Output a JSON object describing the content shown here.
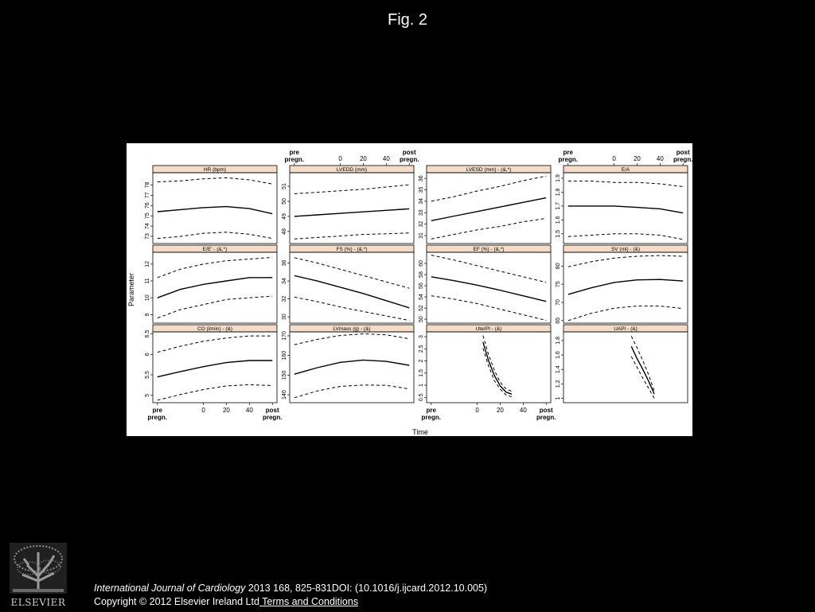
{
  "slide": {
    "title": "Fig. 2",
    "citation_journal": "International Journal of Cardiology",
    "citation_rest": " 2013 168, 825-831DOI: (10.1016/j.ijcard.2012.10.005)",
    "copyright": "Copyright © 2012 Elsevier Ireland Ltd",
    "terms_link": " Terms and Conditions",
    "publisher_logo_text": "ELSEVIER"
  },
  "figure": {
    "ylabel": "Parameter",
    "xlabel": "Time",
    "xticks": [
      {
        "t": -40,
        "label": "pre"
      },
      {
        "t": 0,
        "label": "0"
      },
      {
        "t": 20,
        "label": "20"
      },
      {
        "t": 40,
        "label": "40"
      },
      {
        "t": 60,
        "label": "post"
      }
    ],
    "xtick_second_line": "pregn.",
    "line_color": "#000000",
    "strip_color": "#f5dcc8"
  },
  "chart_data": [
    {
      "type": "line",
      "title": "HR (bpm)",
      "yticks": [
        73,
        74,
        75,
        76,
        77,
        78
      ],
      "ylim": [
        72.3,
        79.2
      ],
      "x": [
        -40,
        -20,
        0,
        20,
        40,
        60
      ],
      "series": [
        {
          "values": [
            75.4,
            75.6,
            75.8,
            75.9,
            75.7,
            75.2
          ]
        },
        {
          "values": [
            78.3,
            78.4,
            78.6,
            78.7,
            78.5,
            78.1
          ],
          "dashed": true
        },
        {
          "values": [
            72.8,
            73.0,
            73.3,
            73.4,
            73.2,
            72.8
          ],
          "dashed": true
        }
      ]
    },
    {
      "type": "line",
      "title": "LVEDD (mm)",
      "yticks": [
        48,
        49,
        50,
        51
      ],
      "ylim": [
        47.2,
        51.9
      ],
      "x": [
        -40,
        -20,
        0,
        20,
        40,
        60
      ],
      "series": [
        {
          "values": [
            49.0,
            49.1,
            49.2,
            49.3,
            49.4,
            49.5
          ]
        },
        {
          "values": [
            50.5,
            50.6,
            50.7,
            50.8,
            50.95,
            51.1
          ],
          "dashed": true
        },
        {
          "values": [
            47.5,
            47.6,
            47.7,
            47.8,
            47.85,
            47.9
          ],
          "dashed": true
        }
      ]
    },
    {
      "type": "line",
      "title": "LVESD (mm) - (&,*)",
      "yticks": [
        31,
        32,
        33,
        34,
        35,
        36
      ],
      "ylim": [
        30.3,
        36.5
      ],
      "x": [
        -40,
        -20,
        0,
        20,
        40,
        60
      ],
      "series": [
        {
          "values": [
            32.3,
            32.7,
            33.1,
            33.5,
            33.9,
            34.3
          ]
        },
        {
          "values": [
            34.0,
            34.4,
            34.9,
            35.3,
            35.8,
            36.2
          ],
          "dashed": true
        },
        {
          "values": [
            30.7,
            31.1,
            31.5,
            31.8,
            32.2,
            32.5
          ],
          "dashed": true
        }
      ]
    },
    {
      "type": "line",
      "title": "E/A",
      "yticks": [
        1.5,
        1.6,
        1.7,
        1.8,
        1.9
      ],
      "ylim": [
        1.43,
        1.94
      ],
      "x": [
        -40,
        -20,
        0,
        20,
        40,
        60
      ],
      "series": [
        {
          "values": [
            1.7,
            1.7,
            1.7,
            1.69,
            1.68,
            1.65
          ]
        },
        {
          "values": [
            1.88,
            1.88,
            1.87,
            1.87,
            1.86,
            1.84
          ],
          "dashed": true
        },
        {
          "values": [
            1.48,
            1.49,
            1.5,
            1.5,
            1.49,
            1.46
          ],
          "dashed": true
        }
      ]
    },
    {
      "type": "line",
      "title": "E/E' - (&,*)",
      "yticks": [
        9,
        10,
        11,
        12
      ],
      "ylim": [
        8.5,
        12.7
      ],
      "x": [
        -40,
        -20,
        0,
        20,
        40,
        60
      ],
      "series": [
        {
          "values": [
            10.0,
            10.5,
            10.8,
            11.0,
            11.2,
            11.2
          ]
        },
        {
          "values": [
            11.2,
            11.7,
            12.0,
            12.2,
            12.3,
            12.4
          ],
          "dashed": true
        },
        {
          "values": [
            8.8,
            9.3,
            9.6,
            9.9,
            10.0,
            10.1
          ],
          "dashed": true
        }
      ]
    },
    {
      "type": "line",
      "title": "FS (%) - (&,*)",
      "yticks": [
        30,
        32,
        34,
        36
      ],
      "ylim": [
        29.3,
        37.2
      ],
      "x": [
        -40,
        -20,
        0,
        20,
        40,
        60
      ],
      "series": [
        {
          "values": [
            34.6,
            34.0,
            33.3,
            32.6,
            31.8,
            31.0
          ]
        },
        {
          "values": [
            36.6,
            36.0,
            35.3,
            34.6,
            33.9,
            33.2
          ],
          "dashed": true
        },
        {
          "values": [
            32.2,
            31.7,
            31.1,
            30.6,
            30.1,
            29.6
          ],
          "dashed": true
        }
      ]
    },
    {
      "type": "line",
      "title": "EF (%) - (&,*)",
      "yticks": [
        50,
        52,
        54,
        56,
        58,
        60
      ],
      "ylim": [
        49.3,
        62.0
      ],
      "x": [
        -40,
        -20,
        0,
        20,
        40,
        60
      ],
      "series": [
        {
          "values": [
            57.6,
            56.9,
            56.1,
            55.2,
            54.2,
            53.2
          ]
        },
        {
          "values": [
            61.5,
            60.6,
            59.6,
            58.6,
            57.6,
            56.6
          ],
          "dashed": true
        },
        {
          "values": [
            54.2,
            53.6,
            52.8,
            51.8,
            50.8,
            49.8
          ],
          "dashed": true
        }
      ]
    },
    {
      "type": "line",
      "title": "SV (ml) - (&)",
      "yticks": [
        65,
        70,
        75,
        80
      ],
      "ylim": [
        64.3,
        83.8
      ],
      "x": [
        -40,
        -20,
        0,
        20,
        40,
        60
      ],
      "series": [
        {
          "values": [
            72.2,
            74.0,
            75.5,
            76.2,
            76.3,
            75.9
          ]
        },
        {
          "values": [
            79.8,
            81.2,
            82.2,
            82.7,
            82.9,
            82.7
          ],
          "dashed": true
        },
        {
          "values": [
            65.0,
            67.0,
            68.4,
            69.0,
            69.0,
            68.3
          ],
          "dashed": true
        }
      ]
    },
    {
      "type": "line",
      "title": "CO (l/min) - (&)",
      "yticks": [
        5.0,
        5.5,
        6.0,
        6.5
      ],
      "ylim": [
        4.82,
        6.55
      ],
      "x": [
        -40,
        -20,
        0,
        20,
        40,
        60
      ],
      "series": [
        {
          "values": [
            5.45,
            5.58,
            5.7,
            5.8,
            5.85,
            5.85
          ]
        },
        {
          "values": [
            6.05,
            6.2,
            6.32,
            6.4,
            6.45,
            6.45
          ],
          "dashed": true
        },
        {
          "values": [
            4.88,
            5.02,
            5.14,
            5.23,
            5.26,
            5.24
          ],
          "dashed": true
        }
      ]
    },
    {
      "type": "line",
      "title": "LVmass (g) - (&)",
      "yticks": [
        140,
        150,
        160,
        170
      ],
      "ylim": [
        136,
        172
      ],
      "x": [
        -40,
        -20,
        0,
        20,
        40,
        60
      ],
      "series": [
        {
          "values": [
            150.5,
            153.8,
            156.5,
            157.7,
            157.0,
            155.0
          ]
        },
        {
          "values": [
            165.5,
            168.2,
            170.2,
            171.0,
            170.5,
            168.5
          ],
          "dashed": true
        },
        {
          "values": [
            138.5,
            142.0,
            144.3,
            145.0,
            144.8,
            143.0
          ],
          "dashed": true
        }
      ]
    },
    {
      "type": "line",
      "title": "UterPI - (&)",
      "yticks": [
        0.5,
        1.0,
        1.5,
        2.0,
        2.5,
        3.0
      ],
      "ylim": [
        0.28,
        3.2
      ],
      "x": [
        5,
        10,
        15,
        20,
        25,
        30
      ],
      "series": [
        {
          "values": [
            2.78,
            2.0,
            1.4,
            0.98,
            0.72,
            0.63
          ]
        },
        {
          "values": [
            3.05,
            2.25,
            1.62,
            1.13,
            0.85,
            0.75
          ],
          "dashed": true
        },
        {
          "values": [
            2.52,
            1.78,
            1.18,
            0.84,
            0.6,
            0.52
          ],
          "dashed": true
        }
      ]
    },
    {
      "type": "line",
      "title": "UAPI - (&)",
      "yticks": [
        1.0,
        1.2,
        1.4,
        1.6,
        1.8
      ],
      "ylim": [
        0.94,
        1.92
      ],
      "x": [
        15,
        20,
        25,
        30,
        35
      ],
      "series": [
        {
          "values": [
            1.72,
            1.55,
            1.4,
            1.24,
            1.06
          ]
        },
        {
          "values": [
            1.86,
            1.7,
            1.52,
            1.33,
            1.1
          ],
          "dashed": true
        },
        {
          "values": [
            1.58,
            1.43,
            1.28,
            1.14,
            1.0
          ],
          "dashed": true
        }
      ]
    }
  ]
}
